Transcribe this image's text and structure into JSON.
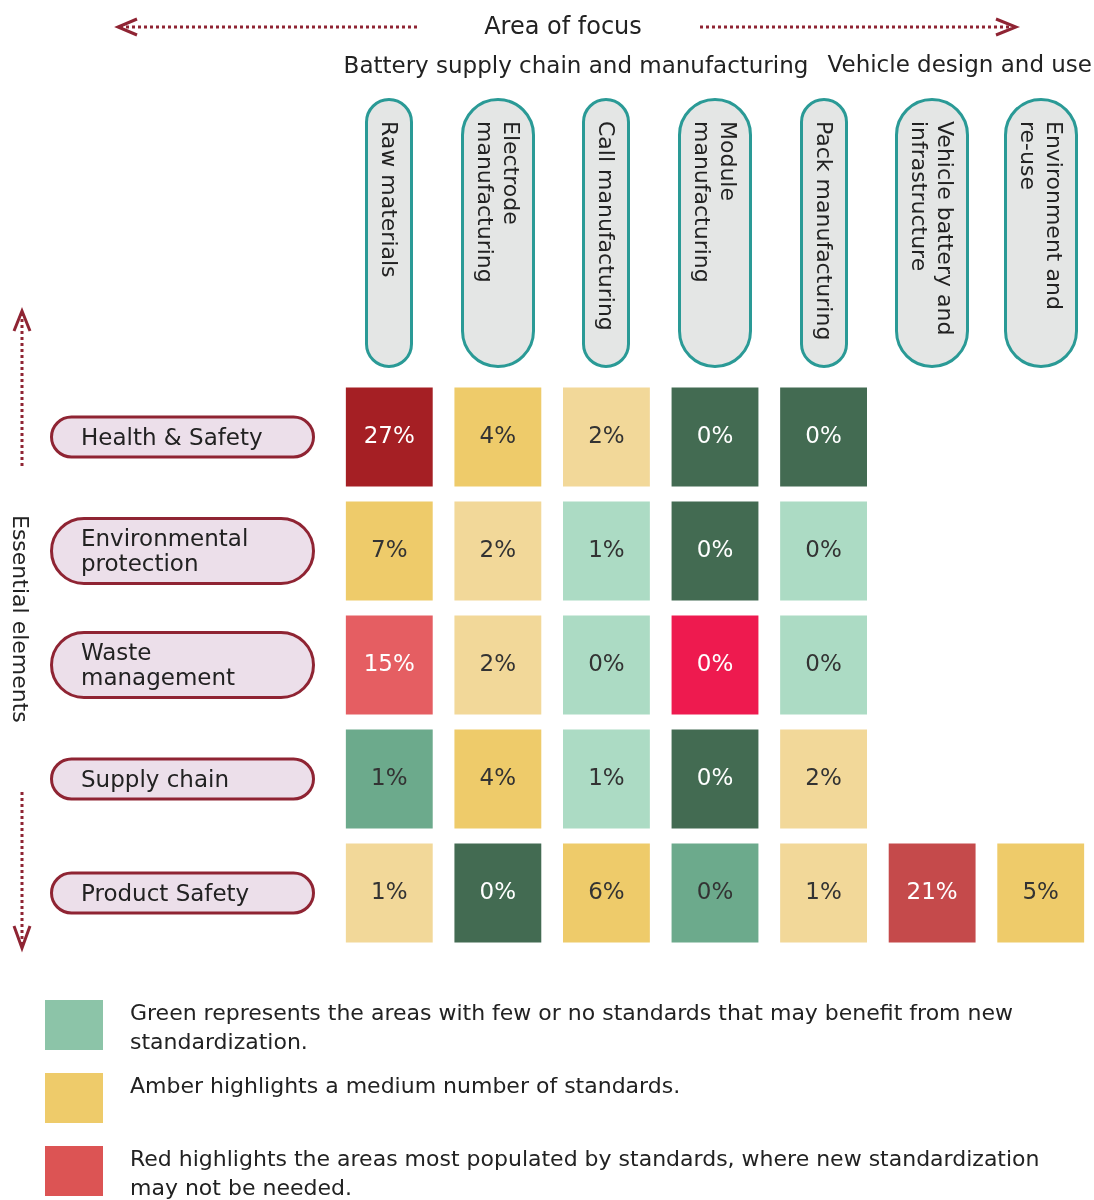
{
  "chart_data": {
    "type": "heatmap",
    "xlabel": "Area of focus",
    "ylabel": "Essential elements",
    "categories": [
      "Raw materials",
      "Electrode manufacturing",
      "Call manufacturing",
      "Module manufacturing",
      "Pack manufacturing",
      "Vehicle battery and infrastructure",
      "Environment and re-use"
    ],
    "y_categories": [
      "Health & Safety",
      "Environmental protection",
      "Waste management",
      "Supply chain",
      "Product Safety"
    ],
    "cells": [
      [
        27,
        4,
        2,
        0,
        0,
        null,
        null
      ],
      [
        7,
        2,
        1,
        0,
        0,
        null,
        null
      ],
      [
        15,
        2,
        0,
        0,
        0,
        null,
        null
      ],
      [
        1,
        4,
        1,
        0,
        2,
        null,
        null
      ],
      [
        1,
        0,
        6,
        0,
        1,
        21,
        5
      ]
    ],
    "cell_labels": [
      [
        "27%",
        "4%",
        "2%",
        "0%",
        "0%",
        null,
        null
      ],
      [
        "7%",
        "2%",
        "1%",
        "0%",
        "0%",
        null,
        null
      ],
      [
        "15%",
        "2%",
        "0%",
        "0%",
        "0%",
        null,
        null
      ],
      [
        "1%",
        "4%",
        "1%",
        "0%",
        "2%",
        null,
        null
      ],
      [
        "1%",
        "0%",
        "6%",
        "0%",
        "1%",
        "21%",
        "5%"
      ]
    ],
    "colors": [
      [
        "#a51f24",
        "#eecb6a",
        "#f2d899",
        "#436b52",
        "#436b52",
        null,
        null
      ],
      [
        "#eecb6a",
        "#f2d899",
        "#acdbc4",
        "#436b52",
        "#acdbc4",
        null,
        null
      ],
      [
        "#e55e62",
        "#f2d899",
        "#acdbc4",
        "#ee1a4f",
        "#acdbc4",
        null,
        null
      ],
      [
        "#6caa8c",
        "#eecb6a",
        "#acdbc4",
        "#436b52",
        "#f2d899",
        null,
        null
      ],
      [
        "#f2d899",
        "#436b52",
        "#eecb6a",
        "#6caa8c",
        "#f2d899",
        "#c54a4b",
        "#eecb6a"
      ]
    ],
    "annotations": [
      "Battery supply chain and manufacturing",
      "Vehicle design and use",
      "Green represents the areas with few or no standards that may benefit from new standardization.",
      "Amber highlights a medium number of standards.",
      "Red highlights the areas most populated by standards, where new standardization may not be needed."
    ]
  }
}
